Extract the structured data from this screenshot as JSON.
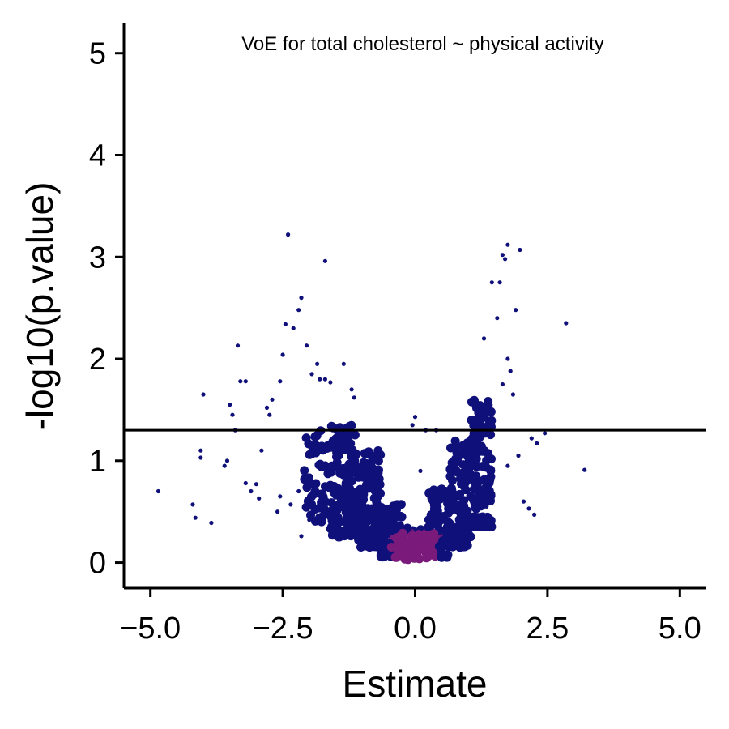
{
  "chart_data": {
    "type": "scatter",
    "render": "hexbin",
    "title": "VoE for total cholesterol ~ physical activity",
    "xlabel": "Estimate",
    "ylabel": "-log10(p.value)",
    "xlim": [
      -5.5,
      5.5
    ],
    "ylim": [
      -0.25,
      5.3
    ],
    "x_ticks": [
      -5.0,
      -2.5,
      0.0,
      2.5,
      5.0
    ],
    "x_tick_labels": [
      "−5.0",
      "−2.5",
      "0.0",
      "2.5",
      "5.0"
    ],
    "y_ticks": [
      0,
      1,
      2,
      3,
      4,
      5
    ],
    "y_tick_labels": [
      "0",
      "1",
      "2",
      "3",
      "4",
      "5"
    ],
    "hline": {
      "y": 1.3
    },
    "grid": false,
    "colors": {
      "low": "#10107a",
      "high": "#7a1a7a",
      "axis": "#000000"
    },
    "outliers": [
      [
        -4.85,
        0.7
      ],
      [
        -4.2,
        0.57
      ],
      [
        -4.15,
        0.44
      ],
      [
        -3.85,
        0.39
      ],
      [
        -4.05,
        1.1
      ],
      [
        -4.05,
        1.03
      ],
      [
        -4.0,
        1.65
      ],
      [
        -3.6,
        0.95
      ],
      [
        -3.55,
        1.0
      ],
      [
        -3.5,
        1.55
      ],
      [
        -3.45,
        1.45
      ],
      [
        -3.4,
        1.3
      ],
      [
        -3.35,
        2.13
      ],
      [
        -3.3,
        1.78
      ],
      [
        -3.2,
        1.78
      ],
      [
        -3.2,
        0.78
      ],
      [
        -3.1,
        0.7
      ],
      [
        -3.0,
        0.77
      ],
      [
        -2.95,
        0.63
      ],
      [
        -2.9,
        1.1
      ],
      [
        -2.8,
        1.52
      ],
      [
        -2.75,
        1.45
      ],
      [
        -2.7,
        1.6
      ],
      [
        -2.55,
        1.78
      ],
      [
        -2.5,
        2.04
      ],
      [
        -2.45,
        2.34
      ],
      [
        -2.4,
        3.22
      ],
      [
        -2.3,
        2.3
      ],
      [
        -2.2,
        2.48
      ],
      [
        -2.15,
        2.6
      ],
      [
        -2.05,
        2.13
      ],
      [
        -1.95,
        1.85
      ],
      [
        -1.85,
        1.95
      ],
      [
        -1.8,
        1.8
      ],
      [
        -1.7,
        2.96
      ],
      [
        -1.7,
        1.8
      ],
      [
        -1.6,
        1.77
      ],
      [
        -1.35,
        1.95
      ],
      [
        -1.2,
        1.7
      ],
      [
        -1.15,
        1.62
      ],
      [
        -2.55,
        0.65
      ],
      [
        -2.6,
        0.5
      ],
      [
        -2.35,
        0.57
      ],
      [
        -2.2,
        0.7
      ],
      [
        -2.0,
        0.42
      ],
      [
        -2.15,
        0.26
      ],
      [
        0.0,
        1.43
      ],
      [
        -0.05,
        1.35
      ],
      [
        0.1,
        0.9
      ],
      [
        0.2,
        1.3
      ],
      [
        0.4,
        1.3
      ],
      [
        1.65,
        1.75
      ],
      [
        1.8,
        1.88
      ],
      [
        1.85,
        1.65
      ],
      [
        1.9,
        2.48
      ],
      [
        1.95,
        1.05
      ],
      [
        1.75,
        2.0
      ],
      [
        1.6,
        2.75
      ],
      [
        1.55,
        2.4
      ],
      [
        1.7,
        2.98
      ],
      [
        1.75,
        3.12
      ],
      [
        1.65,
        3.02
      ],
      [
        1.98,
        3.07
      ],
      [
        1.45,
        2.75
      ],
      [
        1.3,
        2.2
      ],
      [
        2.85,
        2.35
      ],
      [
        2.2,
        1.22
      ],
      [
        2.3,
        1.17
      ],
      [
        2.45,
        1.27
      ],
      [
        3.2,
        0.91
      ],
      [
        2.05,
        0.6
      ],
      [
        2.15,
        0.53
      ],
      [
        2.25,
        0.47
      ],
      [
        1.75,
        0.95
      ],
      [
        1.35,
        0.55
      ]
    ],
    "cloud": [
      {
        "x_min": -2.1,
        "x_max": -1.6,
        "y_base": 0.4,
        "y_top": 1.3,
        "count": 55
      },
      {
        "x_min": -1.6,
        "x_max": -1.1,
        "y_base": 0.25,
        "y_top": 1.35,
        "count": 160
      },
      {
        "x_min": -1.1,
        "x_max": -0.65,
        "y_base": 0.15,
        "y_top": 1.1,
        "count": 150
      },
      {
        "x_min": -0.65,
        "x_max": -0.25,
        "y_base": 0.05,
        "y_top": 0.6,
        "count": 90
      },
      {
        "x_min": -0.25,
        "x_max": 0.25,
        "y_base": 0.03,
        "y_top": 0.35,
        "count": 60
      },
      {
        "x_min": 0.25,
        "x_max": 0.65,
        "y_base": 0.05,
        "y_top": 0.75,
        "count": 90
      },
      {
        "x_min": 0.65,
        "x_max": 1.05,
        "y_base": 0.15,
        "y_top": 1.2,
        "count": 130
      },
      {
        "x_min": 1.05,
        "x_max": 1.45,
        "y_base": 0.35,
        "y_top": 1.6,
        "count": 140
      }
    ]
  }
}
